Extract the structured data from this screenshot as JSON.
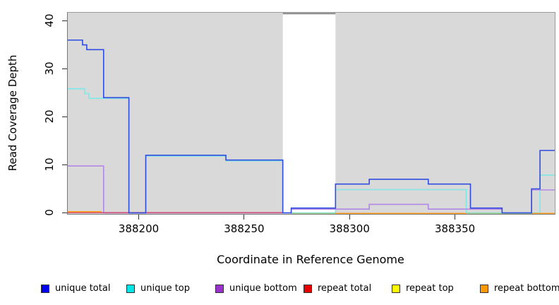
{
  "chart_data": {
    "type": "line",
    "subtype": "step-coverage-plot",
    "title": "",
    "xlabel": "Coordinate in Reference Genome",
    "ylabel": "Read Coverage Depth",
    "xlim": [
      388166,
      388397
    ],
    "ylim": [
      0,
      41.7
    ],
    "grid": false,
    "x_ticks": [
      {
        "value": 388200,
        "label": "388200"
      },
      {
        "value": 388250,
        "label": "388250"
      },
      {
        "value": 388300,
        "label": "388300"
      },
      {
        "value": 388350,
        "label": "388350"
      }
    ],
    "y_ticks": [
      {
        "value": 0,
        "label": "0"
      },
      {
        "value": 10,
        "label": "10"
      },
      {
        "value": 20,
        "label": "20"
      },
      {
        "value": 30,
        "label": "30"
      },
      {
        "value": 40,
        "label": "40"
      }
    ],
    "shaded_regions": [
      {
        "from": 388166,
        "to": 388268
      },
      {
        "from": 388293,
        "to": 388397
      }
    ],
    "gap_region": {
      "from": 388268,
      "to": 388293
    },
    "colors": {
      "shade": "#d9d9d9",
      "gap_top_border": "#8c8c8c"
    },
    "series": [
      {
        "name": "unique total",
        "color": "#2f4de0",
        "dy": 0,
        "steps": [
          [
            388166,
            36
          ],
          [
            388173,
            35
          ],
          [
            388175,
            34
          ],
          [
            388183,
            24
          ],
          [
            388195,
            0
          ],
          [
            388203,
            12
          ],
          [
            388241,
            11
          ],
          [
            388268,
            0
          ],
          [
            388272,
            1
          ],
          [
            388293,
            6
          ],
          [
            388309,
            7
          ],
          [
            388337,
            6
          ],
          [
            388357,
            1
          ],
          [
            388372,
            0
          ],
          [
            388386,
            5
          ],
          [
            388390,
            13
          ],
          [
            388397,
            13
          ]
        ]
      },
      {
        "name": "unique top",
        "color": "#7fe8e8",
        "dy": 1,
        "steps": [
          [
            388166,
            26
          ],
          [
            388174,
            25
          ],
          [
            388176,
            24
          ],
          [
            388195,
            0
          ],
          [
            388203,
            12
          ],
          [
            388241,
            11
          ],
          [
            388268,
            0
          ],
          [
            388293,
            5
          ],
          [
            388355,
            0
          ],
          [
            388390,
            8
          ],
          [
            388397,
            8
          ]
        ]
      },
      {
        "name": "unique bottom",
        "color": "#b387e6",
        "dy": 1.5,
        "steps": [
          [
            388166,
            10
          ],
          [
            388183,
            0
          ],
          [
            388272,
            1
          ],
          [
            388309,
            2
          ],
          [
            388337,
            1
          ],
          [
            388372,
            0
          ],
          [
            388386,
            5
          ],
          [
            388397,
            5
          ]
        ]
      },
      {
        "name": "repeat total",
        "color": "#d0507a",
        "value": 0,
        "range": [
          388166,
          388268
        ]
      },
      {
        "name": "repeat top",
        "color": "#9fce8f",
        "value": 0,
        "range": [
          388272,
          388397
        ]
      },
      {
        "name": "repeat bottom",
        "color": "#ff9d1e",
        "value": 0,
        "range": [
          388166,
          388397
        ]
      }
    ],
    "baseline_segments": [
      {
        "name": "repeat-total-line",
        "from": 388166,
        "to": 388268,
        "color": "#d0507a",
        "dy": -0.3
      },
      {
        "name": "repeat-bottom-line-left",
        "from": 388166,
        "to": 388182,
        "color": "#ff9d1e",
        "dy": -1.7
      },
      {
        "name": "repeat-top-blend-gap",
        "from": 388272,
        "to": 388293,
        "color": "#9fce8f",
        "dy": 0.8
      },
      {
        "name": "repeat-bottom-line-right",
        "from": 388293,
        "to": 388397,
        "color": "#ff9d1e",
        "dy": 0.8
      },
      {
        "name": "repeat-top-blend-right",
        "from": 388355,
        "to": 388386,
        "color": "#9fce8f",
        "dy": 0.8
      }
    ]
  },
  "legend": {
    "items": [
      {
        "label": "unique total",
        "color": "#0000ee"
      },
      {
        "label": "unique top",
        "color": "#00e5e5"
      },
      {
        "label": "unique bottom",
        "color": "#9932cc"
      },
      {
        "label": "repeat total",
        "color": "#e60000"
      },
      {
        "label": "repeat top",
        "color": "#ffff00"
      },
      {
        "label": "repeat bottom",
        "color": "#ff9900"
      }
    ]
  }
}
